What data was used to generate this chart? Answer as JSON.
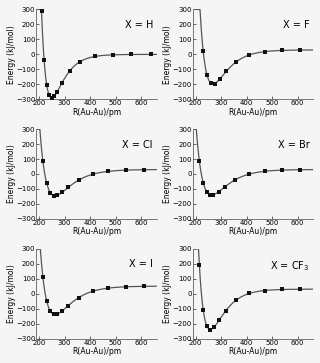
{
  "panels": [
    {
      "title": "X = H",
      "ylim": [
        -300,
        300
      ],
      "xlim": [
        190,
        660
      ],
      "xticks": [
        200,
        300,
        400,
        500,
        600
      ],
      "yticks": [
        -300,
        -200,
        -100,
        0,
        100,
        200,
        300
      ],
      "De": 290,
      "r0": 250,
      "a": 0.022,
      "r_start": 197,
      "e_inf": 0,
      "pts": [
        197,
        210,
        220,
        230,
        240,
        250,
        260,
        270,
        290,
        320,
        360,
        420,
        490,
        560,
        640
      ]
    },
    {
      "title": "X = F",
      "ylim": [
        -300,
        300
      ],
      "xlim": [
        190,
        660
      ],
      "xticks": [
        200,
        300,
        400,
        500,
        600
      ],
      "yticks": [
        -300,
        -200,
        -100,
        0,
        100,
        200,
        300
      ],
      "De": 228,
      "r0": 268,
      "a": 0.018,
      "r_start": 200,
      "e_inf": 30,
      "pts": [
        200,
        215,
        230,
        245,
        260,
        275,
        295,
        320,
        360,
        410,
        470,
        540,
        610
      ]
    },
    {
      "title": "X = Cl",
      "ylim": [
        -300,
        300
      ],
      "xlim": [
        190,
        660
      ],
      "xticks": [
        200,
        300,
        400,
        500,
        600
      ],
      "yticks": [
        -300,
        -200,
        -100,
        0,
        100,
        200,
        300
      ],
      "De": 175,
      "r0": 263,
      "a": 0.016,
      "r_start": 200,
      "e_inf": 30,
      "pts": [
        200,
        215,
        230,
        245,
        258,
        270,
        290,
        315,
        355,
        410,
        470,
        540,
        610
      ]
    },
    {
      "title": "X = Br",
      "ylim": [
        -300,
        300
      ],
      "xlim": [
        190,
        660
      ],
      "xticks": [
        200,
        300,
        400,
        500,
        600
      ],
      "yticks": [
        -300,
        -200,
        -100,
        0,
        100,
        200,
        300
      ],
      "De": 170,
      "r0": 263,
      "a": 0.016,
      "r_start": 200,
      "e_inf": 30,
      "pts": [
        200,
        215,
        230,
        245,
        258,
        270,
        290,
        315,
        355,
        410,
        470,
        540,
        610
      ]
    },
    {
      "title": "X = I",
      "ylim": [
        -300,
        300
      ],
      "xlim": [
        190,
        660
      ],
      "xticks": [
        200,
        300,
        400,
        500,
        600
      ],
      "yticks": [
        -300,
        -200,
        -100,
        0,
        100,
        200,
        300
      ],
      "De": 190,
      "r0": 263,
      "a": 0.016,
      "r_start": 200,
      "e_inf": 50,
      "pts": [
        200,
        215,
        230,
        245,
        258,
        270,
        290,
        315,
        355,
        410,
        470,
        540,
        610
      ]
    },
    {
      "title": "X = CF$_3$",
      "ylim": [
        -300,
        300
      ],
      "xlim": [
        190,
        660
      ],
      "xticks": [
        200,
        300,
        400,
        500,
        600
      ],
      "yticks": [
        -300,
        -200,
        -100,
        0,
        100,
        200,
        300
      ],
      "De": 270,
      "r0": 258,
      "a": 0.019,
      "r_start": 200,
      "e_inf": 30,
      "pts": [
        200,
        215,
        230,
        245,
        258,
        272,
        292,
        318,
        358,
        410,
        470,
        540,
        610
      ]
    }
  ],
  "xlabel": "R(Au-Au)/pm",
  "ylabel": "Energy (kJ/mol)",
  "line_color": "#555555",
  "marker_color": "#111111",
  "marker_size": 3.5,
  "line_width": 0.9,
  "font_size_title": 7,
  "font_size_label": 5.5,
  "font_size_tick": 5,
  "background_color": "#f5f5f5"
}
